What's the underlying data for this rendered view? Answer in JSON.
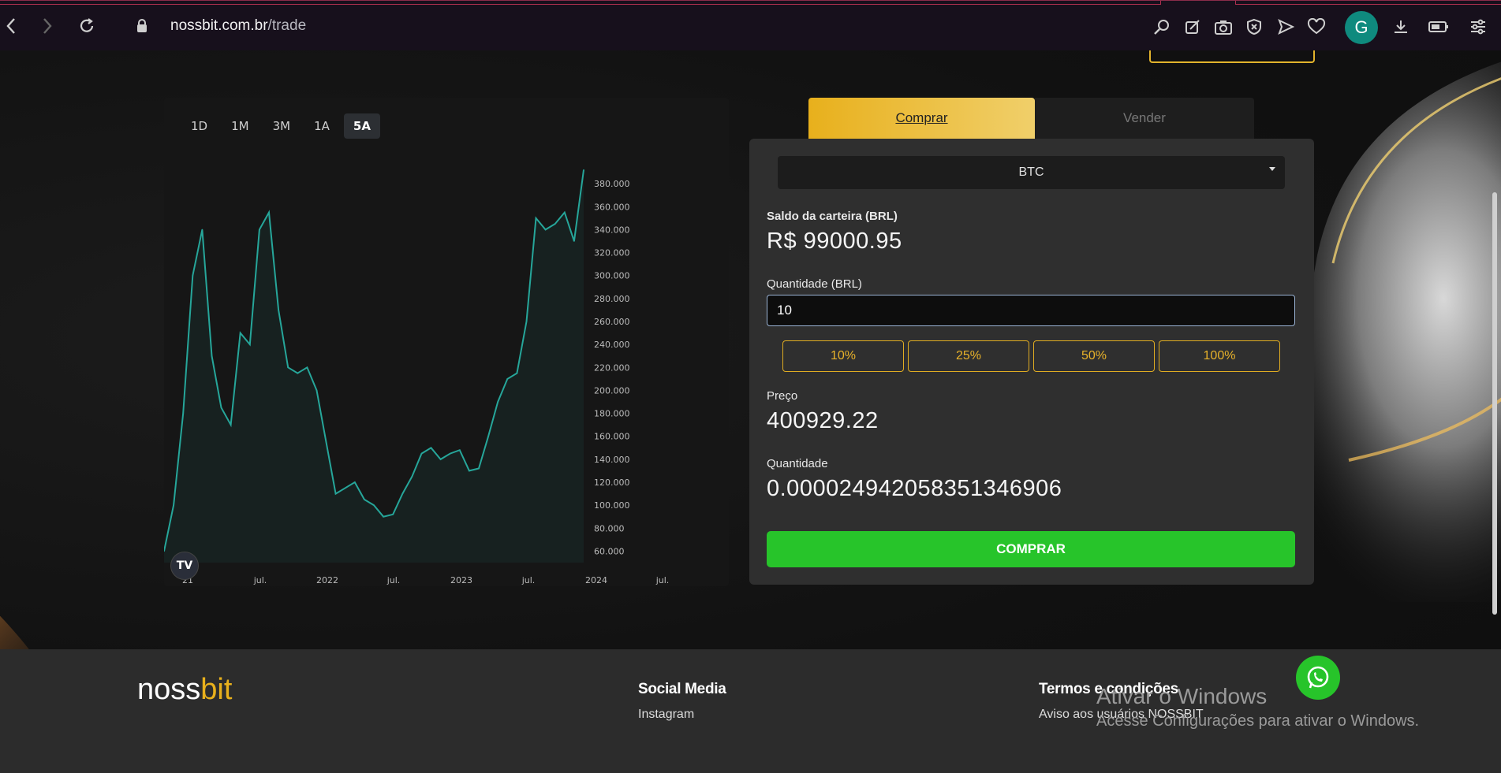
{
  "browser": {
    "url_domain": "nossbit.com.br",
    "url_path": "/trade",
    "avatar_initial": "G"
  },
  "chart": {
    "ranges": [
      "1D",
      "1M",
      "3M",
      "1A",
      "5A"
    ],
    "active_range": "5A",
    "tv_logo": "TV"
  },
  "chart_data": {
    "type": "line",
    "title": "",
    "xlabel": "",
    "ylabel": "",
    "x_tick_labels": [
      "21",
      "jul.",
      "2022",
      "jul.",
      "2023",
      "jul.",
      "2024",
      "jul."
    ],
    "y_tick_labels": [
      "60.000",
      "80.000",
      "100.000",
      "120.000",
      "140.000",
      "160.000",
      "180.000",
      "200.000",
      "220.000",
      "240.000",
      "260.000",
      "280.000",
      "300.000",
      "320.000",
      "340.000",
      "360.000",
      "380.000"
    ],
    "ylim": [
      50000,
      400000
    ],
    "series": [
      {
        "color": "#26a69a",
        "x": [
          "2020-12",
          "2021-01",
          "2021-02",
          "2021-03",
          "2021-04",
          "2021-05",
          "2021-06",
          "2021-07",
          "2021-08",
          "2021-09",
          "2021-10",
          "2021-11",
          "2021-12",
          "2022-01",
          "2022-02",
          "2022-03",
          "2022-04",
          "2022-05",
          "2022-06",
          "2022-07",
          "2022-08",
          "2022-09",
          "2022-10",
          "2022-11",
          "2022-12",
          "2023-01",
          "2023-02",
          "2023-03",
          "2023-04",
          "2023-05",
          "2023-06",
          "2023-07",
          "2023-08",
          "2023-09",
          "2023-10",
          "2023-11",
          "2023-12",
          "2024-01",
          "2024-02",
          "2024-03",
          "2024-04",
          "2024-05",
          "2024-06",
          "2024-07",
          "2024-08"
        ],
        "values": [
          60000,
          100000,
          180000,
          300000,
          340000,
          230000,
          185000,
          170000,
          250000,
          240000,
          340000,
          355000,
          270000,
          220000,
          215000,
          220000,
          200000,
          155000,
          110000,
          115000,
          120000,
          105000,
          100000,
          90000,
          92000,
          110000,
          125000,
          145000,
          150000,
          140000,
          145000,
          148000,
          130000,
          132000,
          160000,
          190000,
          210000,
          215000,
          260000,
          350000,
          340000,
          345000,
          355000,
          330000,
          392000
        ]
      }
    ]
  },
  "trade": {
    "tab_buy": "Comprar",
    "tab_sell": "Vender",
    "asset": "BTC",
    "wallet_label": "Saldo da carteira (BRL)",
    "wallet_value": "R$ 99000.95",
    "qty_brl_label": "Quantidade (BRL)",
    "qty_brl_value": "10",
    "pct_buttons": [
      "10%",
      "25%",
      "50%",
      "100%"
    ],
    "price_label": "Preço",
    "price_value": "400929.22",
    "qty_label": "Quantidade",
    "qty_value": "0.000024942058351346906",
    "buy_button": "COMPRAR"
  },
  "footer": {
    "brand_main": "noss",
    "brand_accent": "bit",
    "social_head": "Social Media",
    "social_link": "Instagram",
    "terms_head": "Termos e condições",
    "terms_link": "Aviso aos usuários NOSSBIT"
  },
  "windows_watermark": {
    "title": "Ativar o Windows",
    "subtitle": "Acesse Configurações para ativar o Windows."
  },
  "colors": {
    "accent": "#e8b01c",
    "buy_green": "#27c42a",
    "chart_line": "#26a69a"
  }
}
